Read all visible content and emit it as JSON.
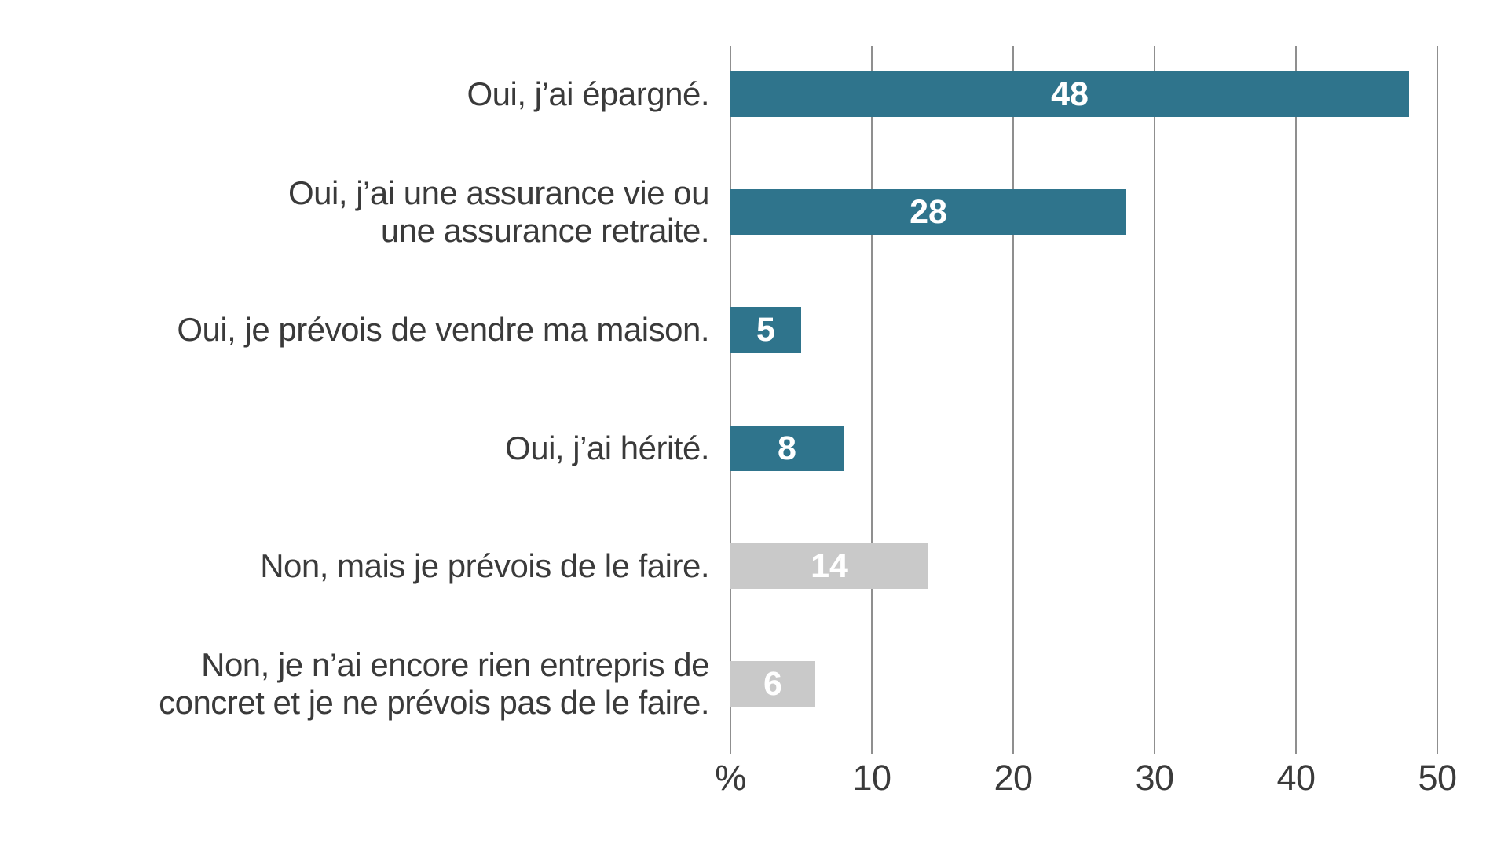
{
  "chart_data": {
    "type": "bar",
    "orientation": "horizontal",
    "title": "",
    "xlabel": "%",
    "ylabel": "",
    "xlim": [
      0,
      50
    ],
    "xticks": [
      0,
      10,
      20,
      30,
      40,
      50
    ],
    "xtick_labels": [
      "%",
      "10",
      "20",
      "30",
      "40",
      "50"
    ],
    "grid": true,
    "legend": "none",
    "categories": [
      "Oui, j’ai épargné.",
      "Oui, j’ai une assurance vie ou\nune assurance retraite.",
      "Oui, je prévois de vendre ma maison.",
      "Oui, j’ai hérité.",
      "Non, mais je prévois de le faire.",
      "Non, je n’ai encore rien entrepris de\nconcret et je ne prévois pas de le faire."
    ],
    "values": [
      48,
      28,
      5,
      8,
      14,
      6
    ],
    "bar_color_keys": [
      "primary",
      "primary",
      "primary",
      "primary",
      "secondary",
      "secondary"
    ]
  },
  "colors": {
    "primary_bar": "#2f748c",
    "secondary_bar": "#c9c9c9",
    "value_label": "#ffffff",
    "category_label": "#3a3a3a",
    "tick_label": "#3a3a3a",
    "gridline": "#8f8f8f",
    "background": "#ffffff"
  }
}
